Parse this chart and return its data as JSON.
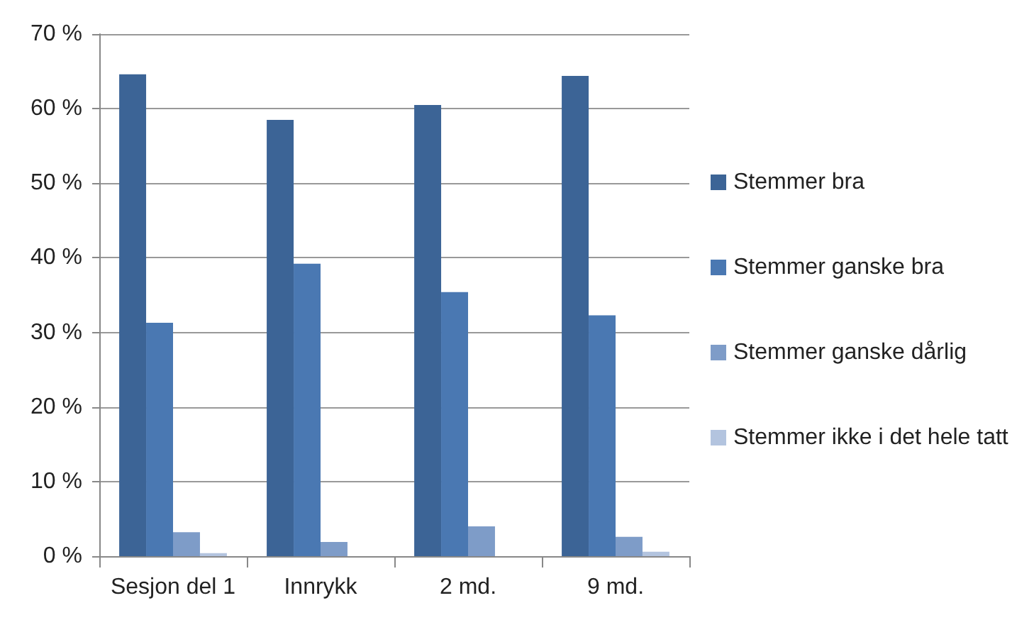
{
  "chart_data": {
    "type": "bar",
    "categories": [
      "Sesjon del 1",
      "Innrykk",
      "2 md.",
      "9 md."
    ],
    "series": [
      {
        "name": "Stemmer bra",
        "color": "#3c6496",
        "values": [
          64.6,
          58.5,
          60.5,
          64.4
        ]
      },
      {
        "name": "Stemmer ganske bra",
        "color": "#4a78b2",
        "values": [
          31.3,
          39.2,
          35.4,
          32.3
        ]
      },
      {
        "name": "Stemmer ganske dårlig",
        "color": "#7e9cc8",
        "values": [
          3.2,
          1.9,
          4.0,
          2.6
        ]
      },
      {
        "name": "Stemmer ikke i det hele tatt",
        "color": "#b3c4df",
        "values": [
          0.4,
          0,
          0,
          0.6
        ]
      }
    ],
    "ylim": [
      0,
      70
    ],
    "yticks": [
      {
        "value": 0,
        "label": "0 %"
      },
      {
        "value": 10,
        "label": "10 %"
      },
      {
        "value": 20,
        "label": "20 %"
      },
      {
        "value": 30,
        "label": "30 %"
      },
      {
        "value": 40,
        "label": "40 %"
      },
      {
        "value": 50,
        "label": "50 %"
      },
      {
        "value": 60,
        "label": "60 %"
      },
      {
        "value": 70,
        "label": "70 %"
      }
    ],
    "grid": "y",
    "legend": "right"
  }
}
